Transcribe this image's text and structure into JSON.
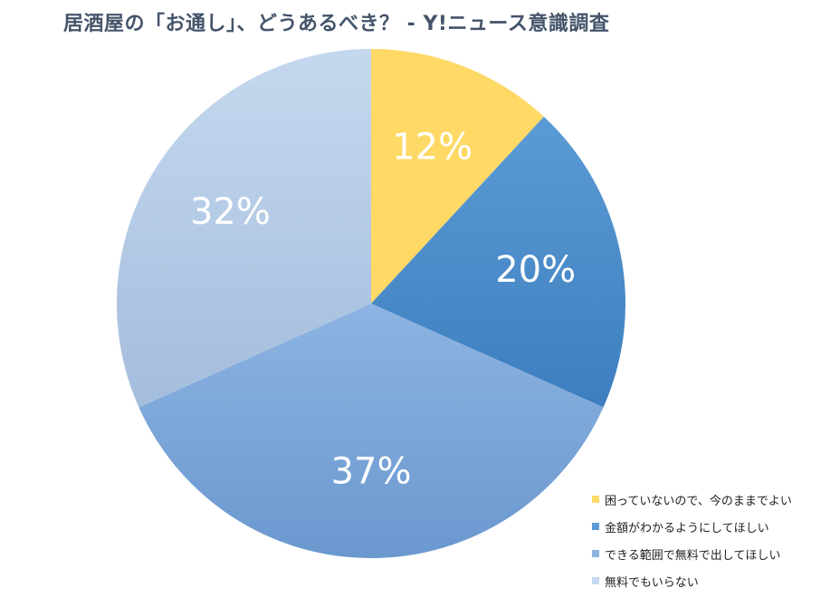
{
  "chart_data": {
    "type": "pie",
    "title": "居酒屋の「お通し」、どうあるべき？ - Y!ニュース意識調査",
    "start_angle_deg": 0,
    "direction": "clockwise",
    "legend_position": "bottom-right",
    "slices": [
      {
        "label": "困っていないので、今のままでよい",
        "value": 12,
        "display": "12%",
        "color": "#ffd966",
        "color_dark": "#ffd966"
      },
      {
        "label": "金額がわかるようにしてほしい",
        "value": 20,
        "display": "20%",
        "color": "#5b9bd5",
        "color_dark": "#3d7ebf"
      },
      {
        "label": "できる範囲で無料で出してほしい",
        "value": 37,
        "display": "37%",
        "color": "#8db4e2",
        "color_dark": "#6a98cf"
      },
      {
        "label": "無料でもいらない",
        "value": 32,
        "display": "32%",
        "color": "#c5d8ef",
        "color_dark": "#a4bddc"
      }
    ]
  }
}
